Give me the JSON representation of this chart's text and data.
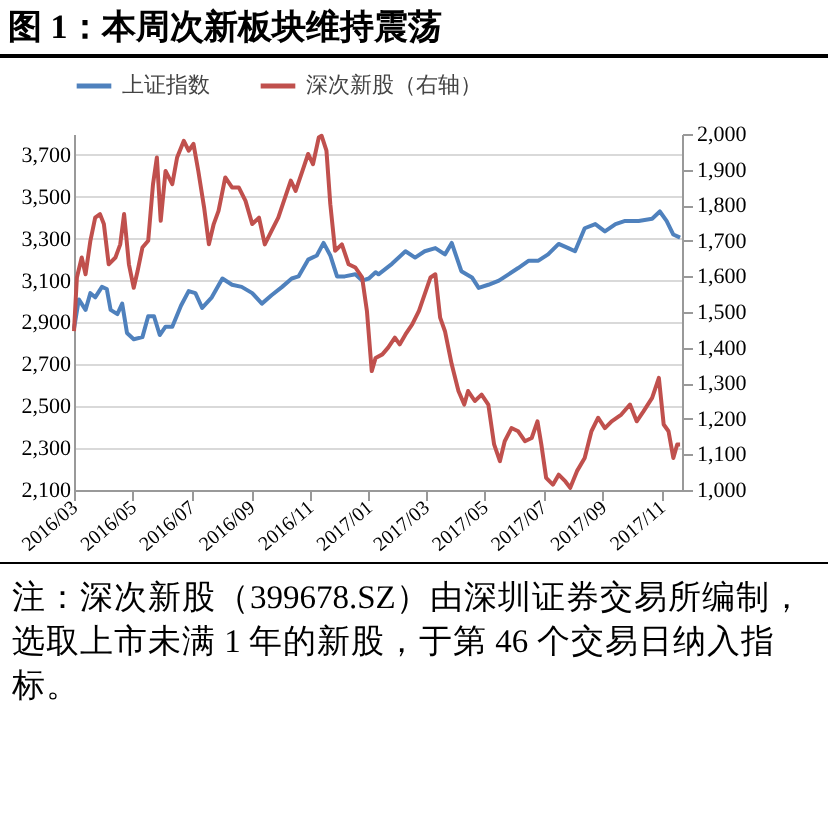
{
  "chart_data": {
    "type": "line",
    "title": "图 1：本周次新板块维持震荡",
    "annotations": [
      "注：深次新股（399678.SZ）由深圳证券交易所编制，选取上市未满 1 年的新股，于第 46 个交易日纳入指标。"
    ],
    "xlim": [
      "2016-03-01",
      "2017-11-22"
    ],
    "xticks": [
      {
        "value": "2016-03-01",
        "label": "2016/03"
      },
      {
        "value": "2016-05-01",
        "label": "2016/05"
      },
      {
        "value": "2016-07-01",
        "label": "2016/07"
      },
      {
        "value": "2016-09-01",
        "label": "2016/09"
      },
      {
        "value": "2016-11-01",
        "label": "2016/11"
      },
      {
        "value": "2017-01-01",
        "label": "2017/01"
      },
      {
        "value": "2017-03-01",
        "label": "2017/03"
      },
      {
        "value": "2017-05-01",
        "label": "2017/05"
      },
      {
        "value": "2017-07-01",
        "label": "2017/07"
      },
      {
        "value": "2017-09-01",
        "label": "2017/09"
      },
      {
        "value": "2017-11-01",
        "label": "2017/11"
      }
    ],
    "ylim": [
      2100,
      3800
    ],
    "yticks": [
      {
        "value": 2100,
        "label": "2,100"
      },
      {
        "value": 2300,
        "label": "2,300"
      },
      {
        "value": 2500,
        "label": "2,500"
      },
      {
        "value": 2700,
        "label": "2,700"
      },
      {
        "value": 2900,
        "label": "2,900"
      },
      {
        "value": 3100,
        "label": "3,100"
      },
      {
        "value": 3300,
        "label": "3,300"
      },
      {
        "value": 3500,
        "label": "3,500"
      },
      {
        "value": 3700,
        "label": "3,700"
      }
    ],
    "y2lim": [
      1000,
      2000
    ],
    "y2ticks": [
      {
        "value": 1000,
        "label": "1,000"
      },
      {
        "value": 1100,
        "label": "1,100"
      },
      {
        "value": 1200,
        "label": "1,200"
      },
      {
        "value": 1300,
        "label": "1,300"
      },
      {
        "value": 1400,
        "label": "1,400"
      },
      {
        "value": 1500,
        "label": "1,500"
      },
      {
        "value": 1600,
        "label": "1,600"
      },
      {
        "value": 1700,
        "label": "1,700"
      },
      {
        "value": 1800,
        "label": "1,800"
      },
      {
        "value": 1900,
        "label": "1,900"
      },
      {
        "value": 2000,
        "label": "2,000"
      }
    ],
    "grid": "y",
    "legend": "top",
    "series": [
      {
        "name": "上证指数",
        "color": "#4f81bd",
        "x": [
          "2016-03-01",
          "2016-03-06",
          "2016-03-13",
          "2016-03-18",
          "2016-03-23",
          "2016-03-30",
          "2016-04-04",
          "2016-04-08",
          "2016-04-15",
          "2016-04-20",
          "2016-04-25",
          "2016-05-02",
          "2016-05-11",
          "2016-05-17",
          "2016-05-23",
          "2016-05-29",
          "2016-06-04",
          "2016-06-11",
          "2016-06-20",
          "2016-06-28",
          "2016-07-05",
          "2016-07-12",
          "2016-07-22",
          "2016-08-02",
          "2016-08-12",
          "2016-08-22",
          "2016-09-02",
          "2016-09-12",
          "2016-09-22",
          "2016-10-03",
          "2016-10-13",
          "2016-10-20",
          "2016-10-30",
          "2016-11-08",
          "2016-11-15",
          "2016-11-22",
          "2016-11-29",
          "2016-12-07",
          "2016-12-18",
          "2016-12-25",
          "2017-01-01",
          "2017-01-08",
          "2017-01-11",
          "2017-01-25",
          "2017-02-08",
          "2017-02-18",
          "2017-02-28",
          "2017-03-11",
          "2017-03-21",
          "2017-03-28",
          "2017-04-07",
          "2017-04-18",
          "2017-04-25",
          "2017-05-05",
          "2017-05-16",
          "2017-05-26",
          "2017-06-05",
          "2017-06-16",
          "2017-06-26",
          "2017-07-06",
          "2017-07-17",
          "2017-07-27",
          "2017-08-03",
          "2017-08-13",
          "2017-08-24",
          "2017-09-03",
          "2017-09-14",
          "2017-09-24",
          "2017-10-08",
          "2017-10-22",
          "2017-10-30",
          "2017-11-06",
          "2017-11-13",
          "2017-11-20"
        ],
        "values": [
          2870,
          3010,
          2960,
          3040,
          3020,
          3070,
          3060,
          2960,
          2940,
          2990,
          2850,
          2820,
          2830,
          2930,
          2930,
          2840,
          2880,
          2880,
          2980,
          3050,
          3040,
          2970,
          3020,
          3110,
          3080,
          3070,
          3040,
          2990,
          3030,
          3070,
          3110,
          3120,
          3200,
          3220,
          3280,
          3220,
          3120,
          3120,
          3130,
          3100,
          3110,
          3140,
          3130,
          3180,
          3240,
          3210,
          3240,
          3255,
          3225,
          3280,
          3145,
          3115,
          3065,
          3080,
          3100,
          3130,
          3160,
          3195,
          3195,
          3225,
          3275,
          3255,
          3240,
          3350,
          3370,
          3335,
          3370,
          3385,
          3385,
          3395,
          3430,
          3385,
          3320,
          3305
        ]
      },
      {
        "name": "深次新股（右轴）",
        "color": "#c0504d",
        "axis": "y2",
        "x": [
          "2016-03-01",
          "2016-03-04",
          "2016-03-09",
          "2016-03-13",
          "2016-03-18",
          "2016-03-23",
          "2016-03-28",
          "2016-04-01",
          "2016-04-06",
          "2016-04-13",
          "2016-04-18",
          "2016-04-22",
          "2016-04-27",
          "2016-05-02",
          "2016-05-06",
          "2016-05-11",
          "2016-05-17",
          "2016-05-22",
          "2016-05-26",
          "2016-05-30",
          "2016-06-04",
          "2016-06-11",
          "2016-06-16",
          "2016-06-23",
          "2016-06-28",
          "2016-07-03",
          "2016-07-08",
          "2016-07-14",
          "2016-07-19",
          "2016-07-24",
          "2016-07-29",
          "2016-08-05",
          "2016-08-12",
          "2016-08-19",
          "2016-08-26",
          "2016-09-02",
          "2016-09-09",
          "2016-09-15",
          "2016-09-22",
          "2016-09-29",
          "2016-10-06",
          "2016-10-12",
          "2016-10-17",
          "2016-10-24",
          "2016-10-30",
          "2016-11-04",
          "2016-11-10",
          "2016-11-13",
          "2016-11-18",
          "2016-11-22",
          "2016-11-27",
          "2016-12-04",
          "2016-12-11",
          "2016-12-18",
          "2016-12-25",
          "2016-12-30",
          "2017-01-04",
          "2017-01-08",
          "2017-01-15",
          "2017-01-21",
          "2017-01-28",
          "2017-02-02",
          "2017-02-08",
          "2017-02-15",
          "2017-02-22",
          "2017-02-28",
          "2017-03-06",
          "2017-03-11",
          "2017-03-16",
          "2017-03-21",
          "2017-03-28",
          "2017-04-04",
          "2017-04-10",
          "2017-04-14",
          "2017-04-21",
          "2017-04-28",
          "2017-05-05",
          "2017-05-11",
          "2017-05-17",
          "2017-05-22",
          "2017-05-29",
          "2017-06-05",
          "2017-06-12",
          "2017-06-19",
          "2017-06-25",
          "2017-06-29",
          "2017-07-04",
          "2017-07-11",
          "2017-07-17",
          "2017-07-24",
          "2017-07-29",
          "2017-08-05",
          "2017-08-13",
          "2017-08-20",
          "2017-08-27",
          "2017-09-03",
          "2017-09-10",
          "2017-09-20",
          "2017-09-29",
          "2017-10-06",
          "2017-10-13",
          "2017-10-22",
          "2017-10-29",
          "2017-11-03",
          "2017-11-08",
          "2017-11-13",
          "2017-11-17",
          "2017-11-20"
        ],
        "values": [
          1446,
          1597,
          1653,
          1606,
          1700,
          1765,
          1775,
          1747,
          1634,
          1653,
          1690,
          1775,
          1634,
          1568,
          1615,
          1681,
          1700,
          1859,
          1934,
          1756,
          1896,
          1859,
          1934,
          1981,
          1953,
          1972,
          1896,
          1794,
          1690,
          1747,
          1784,
          1878,
          1850,
          1850,
          1812,
          1747,
          1765,
          1690,
          1728,
          1765,
          1821,
          1869,
          1840,
          1896,
          1944,
          1915,
          1990,
          1995,
          1953,
          1803,
          1672,
          1690,
          1634,
          1625,
          1597,
          1503,
          1334,
          1371,
          1381,
          1400,
          1428,
          1409,
          1437,
          1465,
          1503,
          1550,
          1597,
          1606,
          1484,
          1446,
          1353,
          1278,
          1240,
          1278,
          1250,
          1268,
          1240,
          1128,
          1081,
          1137,
          1174,
          1165,
          1137,
          1146,
          1193,
          1128,
          1034,
          1015,
          1043,
          1024,
          1006,
          1053,
          1090,
          1165,
          1203,
          1174,
          1193,
          1212,
          1240,
          1193,
          1221,
          1259,
          1315,
          1184,
          1165,
          1090,
          1128,
          1128
        ]
      }
    ]
  }
}
